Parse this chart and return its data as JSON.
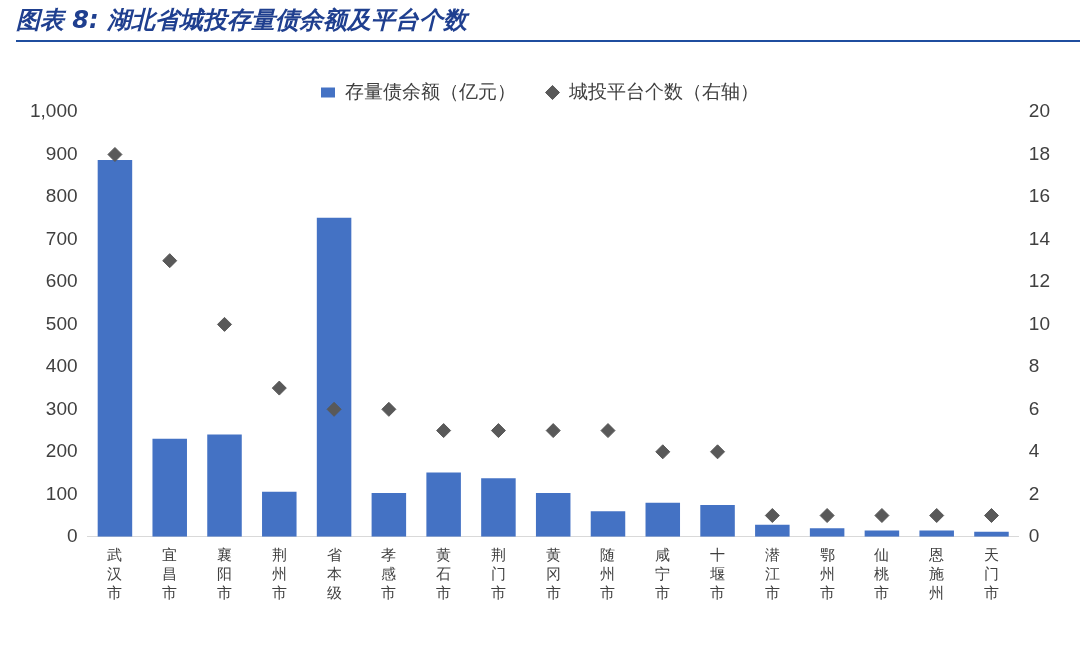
{
  "chart_data": {
    "type": "bar",
    "title": "图表 8: 湖北省城投存量债余额及平台个数",
    "categories": [
      "武汉市",
      "宜昌市",
      "襄阳市",
      "荆州市",
      "省本级",
      "孝感市",
      "黄石市",
      "荆门市",
      "黄冈市",
      "随州市",
      "咸宁市",
      "十堰市",
      "潜江市",
      "鄂州市",
      "仙桃市",
      "恩施州",
      "天门市"
    ],
    "series": [
      {
        "name": "存量债余额（亿元）",
        "color": "#4472c4",
        "values": [
          887,
          231,
          241,
          106,
          751,
          103,
          151,
          138,
          103,
          60,
          80,
          75,
          28,
          20,
          15,
          15,
          12
        ]
      },
      {
        "name": "城投平台个数（右轴）",
        "type": "scatter",
        "axis": "y2",
        "marker": "diamond",
        "color": "#595959",
        "values": [
          18,
          13,
          10,
          7,
          6,
          6,
          5,
          5,
          5,
          5,
          4,
          4,
          1,
          1,
          1,
          1,
          1
        ]
      }
    ],
    "ylim": [
      0,
      1000
    ],
    "yticks": [
      0,
      100,
      200,
      300,
      400,
      500,
      600,
      700,
      800,
      900,
      {
        "value": 1000,
        "label": "1,000"
      }
    ],
    "y2lim": [
      0,
      20
    ],
    "y2ticks": [
      0,
      2,
      4,
      6,
      8,
      10,
      12,
      14,
      16,
      18,
      20
    ],
    "grid": false,
    "legend": "top"
  }
}
